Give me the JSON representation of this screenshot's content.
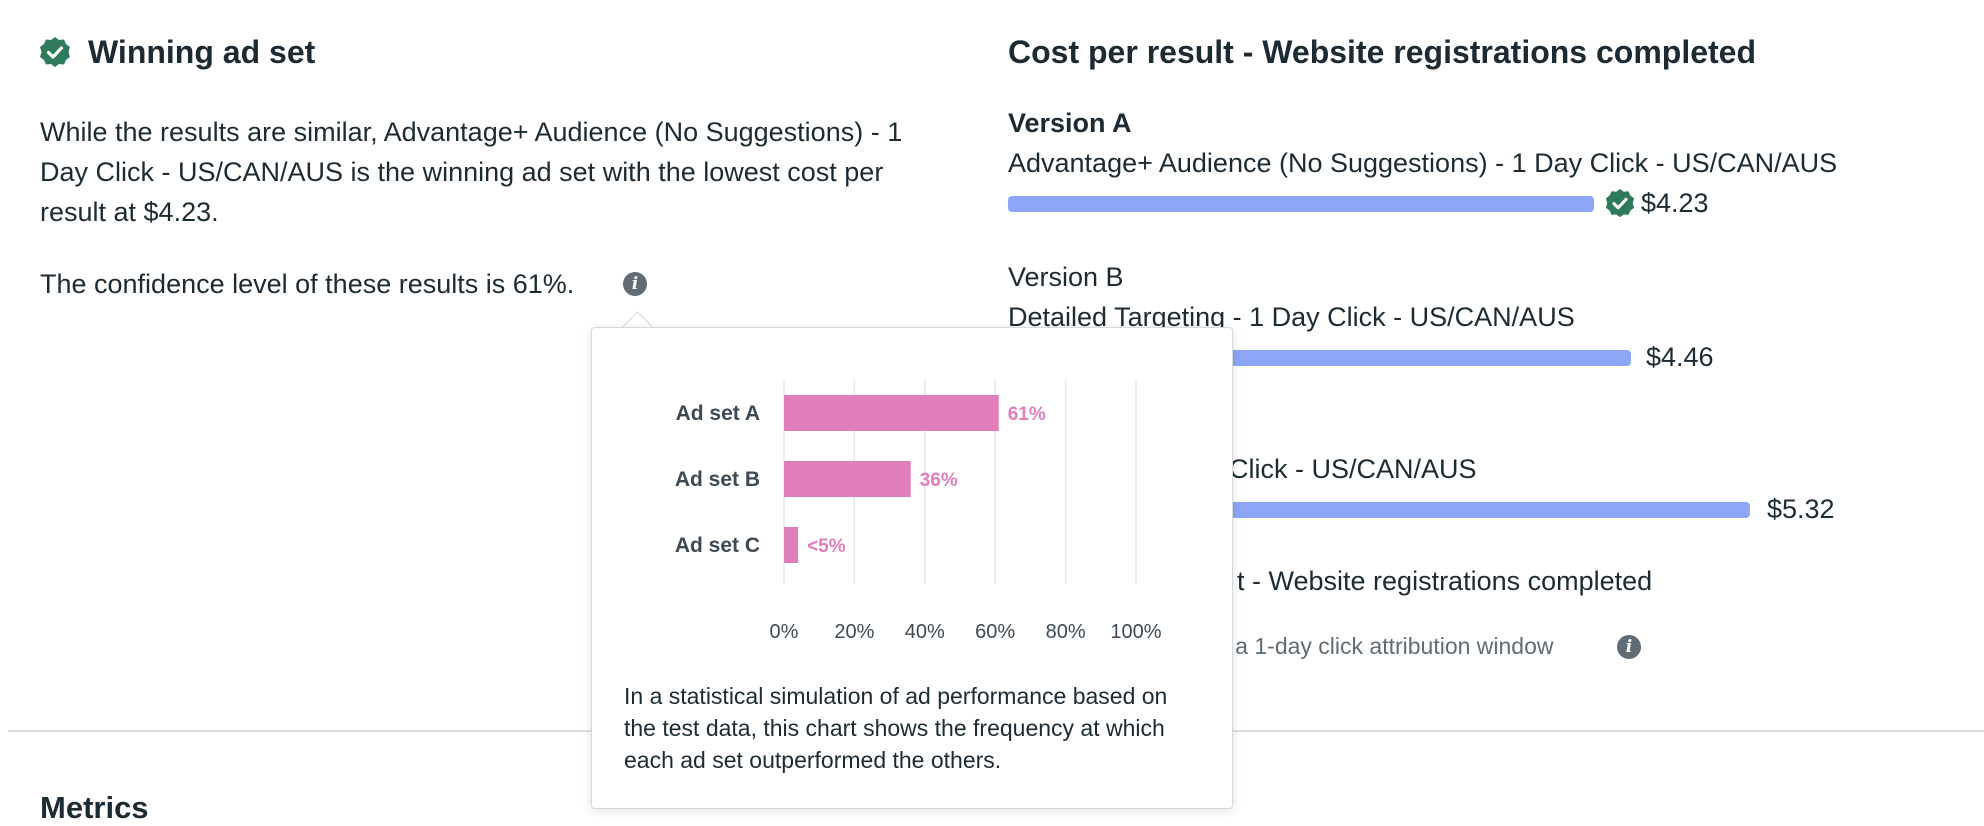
{
  "winning": {
    "title": "Winning ad set",
    "description": "While the results are similar, Advantage+ Audience (No Suggestions) - 1 Day Click - US/CAN/AUS is the winning ad set with the lowest cost per result at $4.23.",
    "confidence_text": "The confidence level of these results is 61%.",
    "icons": {
      "badge": "check-badge-icon",
      "info": "info-icon"
    }
  },
  "cost_per_result": {
    "title": "Cost per result - Website registrations completed",
    "versions": [
      {
        "label": "Version A",
        "name": "Advantage+ Audience (No Suggestions) - 1 Day Click - US/CAN/AUS",
        "value": "$4.23",
        "winner": true
      },
      {
        "label": "Version B",
        "name": "Detailed Targeting - 1 Day Click - US/CAN/AUS",
        "value": "$4.46",
        "winner": false
      },
      {
        "name_visible_fragment": "y Click - US/CAN/AUS",
        "value": "$5.32",
        "winner": false
      }
    ],
    "footer_fragment": "t - Website registrations completed",
    "attribution_fragment": "n a 1-day click attribution window",
    "bar_color": "#8ba7f5"
  },
  "metrics": {
    "title": "Metrics"
  },
  "popover": {
    "caption": "In a statistical simulation of ad performance based on the test data, this chart shows the frequency at which each ad set outperformed the others.",
    "chart_data": {
      "type": "bar",
      "orientation": "horizontal",
      "categories": [
        "Ad set A",
        "Ad set B",
        "Ad set C"
      ],
      "values": [
        61,
        36,
        4
      ],
      "data_labels": [
        "61%",
        "36%",
        "<5%"
      ],
      "xticks": [
        "0%",
        "20%",
        "40%",
        "60%",
        "80%",
        "100%"
      ],
      "xlim": [
        0,
        100
      ],
      "grid": true,
      "bar_color": "#e07ebb",
      "title": "",
      "xlabel": "",
      "ylabel": ""
    }
  },
  "colors": {
    "accent_green": "#2f7a5a",
    "text": "#1c2b33",
    "muted": "#5f6b75"
  }
}
